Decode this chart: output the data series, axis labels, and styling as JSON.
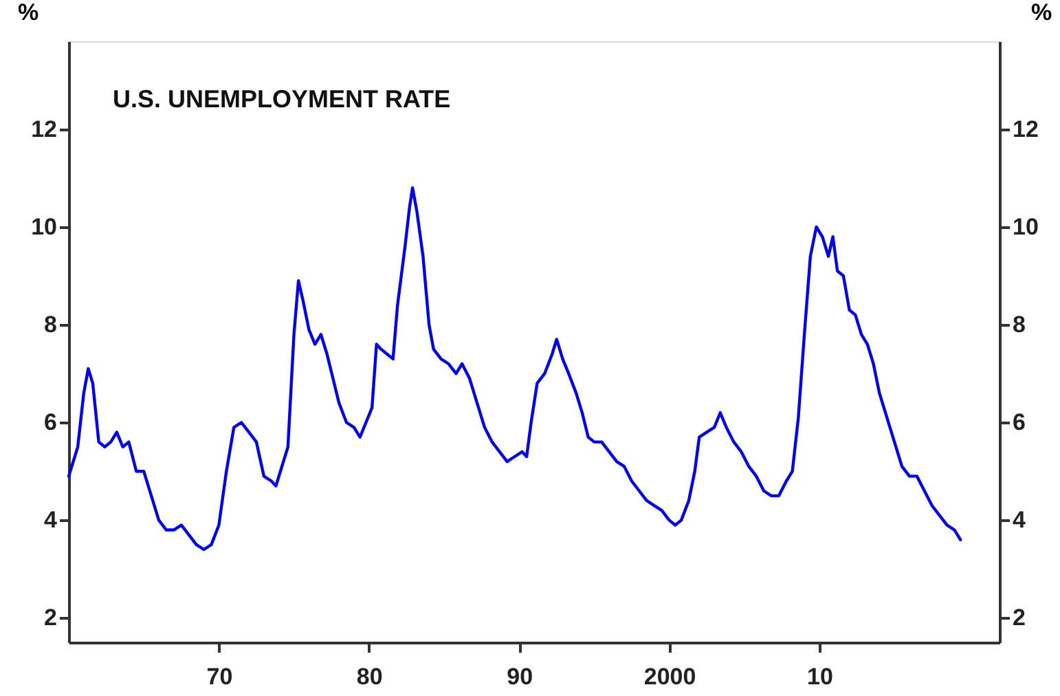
{
  "chart_data": {
    "type": "line",
    "title": "U.S. UNEMPLOYMENT RATE",
    "ylabel": "%",
    "y2label": "%",
    "x": [
      1960.0,
      1960.3,
      1960.6,
      1961.0,
      1961.3,
      1961.6,
      1962.0,
      1962.4,
      1962.8,
      1963.2,
      1963.6,
      1964.0,
      1964.5,
      1965.0,
      1965.5,
      1966.0,
      1966.5,
      1967.0,
      1967.5,
      1968.0,
      1968.5,
      1969.0,
      1969.5,
      1970.0,
      1970.5,
      1971.0,
      1971.5,
      1972.0,
      1972.5,
      1973.0,
      1973.5,
      1973.8,
      1974.2,
      1974.6,
      1975.0,
      1975.3,
      1975.6,
      1976.0,
      1976.4,
      1976.8,
      1977.2,
      1977.6,
      1978.0,
      1978.5,
      1979.0,
      1979.4,
      1979.8,
      1980.2,
      1980.5,
      1980.8,
      1981.2,
      1981.6,
      1981.9,
      1982.4,
      1982.7,
      1982.9,
      1983.2,
      1983.6,
      1984.0,
      1984.3,
      1984.8,
      1985.3,
      1985.8,
      1986.2,
      1986.7,
      1987.2,
      1987.7,
      1988.2,
      1988.7,
      1989.2,
      1989.7,
      1990.2,
      1990.5,
      1990.8,
      1991.2,
      1991.7,
      1992.2,
      1992.5,
      1992.9,
      1993.3,
      1993.8,
      1994.2,
      1994.6,
      1995.0,
      1995.5,
      1996.0,
      1996.5,
      1997.0,
      1997.5,
      1998.0,
      1998.5,
      1999.0,
      1999.5,
      2000.0,
      2000.4,
      2000.8,
      2001.3,
      2001.7,
      2002.0,
      2002.5,
      2003.0,
      2003.4,
      2003.8,
      2004.3,
      2004.8,
      2005.3,
      2005.8,
      2006.3,
      2006.8,
      2007.3,
      2007.8,
      2008.2,
      2008.6,
      2009.0,
      2009.4,
      2009.8,
      2010.2,
      2010.6,
      2010.9,
      2011.2,
      2011.6,
      2012.0,
      2012.4,
      2012.8,
      2013.2,
      2013.6,
      2014.0,
      2014.5,
      2015.0,
      2015.5,
      2016.0,
      2016.5,
      2017.0,
      2017.5,
      2018.0,
      2018.5,
      2019.0,
      2019.4
    ],
    "series": [
      {
        "color": "#0000ff",
        "values": [
          4.9,
          5.2,
          5.5,
          6.6,
          7.1,
          6.8,
          5.6,
          5.5,
          5.6,
          5.8,
          5.5,
          5.6,
          5.0,
          5.0,
          4.5,
          4.0,
          3.8,
          3.8,
          3.9,
          3.7,
          3.5,
          3.4,
          3.5,
          3.9,
          5.0,
          5.9,
          6.0,
          5.8,
          5.6,
          4.9,
          4.8,
          4.7,
          5.1,
          5.5,
          7.8,
          8.9,
          8.5,
          7.9,
          7.6,
          7.8,
          7.4,
          6.9,
          6.4,
          6.0,
          5.9,
          5.7,
          6.0,
          6.3,
          7.6,
          7.5,
          7.4,
          7.3,
          8.4,
          9.6,
          10.4,
          10.8,
          10.3,
          9.4,
          8.0,
          7.5,
          7.3,
          7.2,
          7.0,
          7.2,
          6.9,
          6.4,
          5.9,
          5.6,
          5.4,
          5.2,
          5.3,
          5.4,
          5.3,
          6.0,
          6.8,
          7.0,
          7.4,
          7.7,
          7.3,
          7.0,
          6.6,
          6.2,
          5.7,
          5.6,
          5.6,
          5.4,
          5.2,
          5.1,
          4.8,
          4.6,
          4.4,
          4.3,
          4.2,
          4.0,
          3.9,
          4.0,
          4.4,
          5.0,
          5.7,
          5.8,
          5.9,
          6.2,
          5.9,
          5.6,
          5.4,
          5.1,
          4.9,
          4.6,
          4.5,
          4.5,
          4.8,
          5.0,
          6.1,
          7.8,
          9.4,
          10.0,
          9.8,
          9.4,
          9.8,
          9.1,
          9.0,
          8.3,
          8.2,
          7.8,
          7.6,
          7.2,
          6.6,
          6.1,
          5.6,
          5.1,
          4.9,
          4.9,
          4.6,
          4.3,
          4.1,
          3.9,
          3.8,
          3.6
        ]
      }
    ],
    "xlim": [
      1960,
      2022
    ],
    "xticks": [
      {
        "value": 1970,
        "label": "70"
      },
      {
        "value": 1980,
        "label": "80"
      },
      {
        "value": 1990,
        "label": "90"
      },
      2000,
      {
        "value": 2010,
        "label": "10"
      }
    ],
    "ylim": [
      1.5,
      13.8
    ],
    "yticks": [
      2,
      4,
      6,
      8,
      10,
      12
    ],
    "y2lim": [
      1.5,
      13.8
    ],
    "y2ticks": [
      2,
      4,
      6,
      8,
      10,
      12
    ],
    "grid": false,
    "legend": false,
    "line_style": "solid"
  }
}
